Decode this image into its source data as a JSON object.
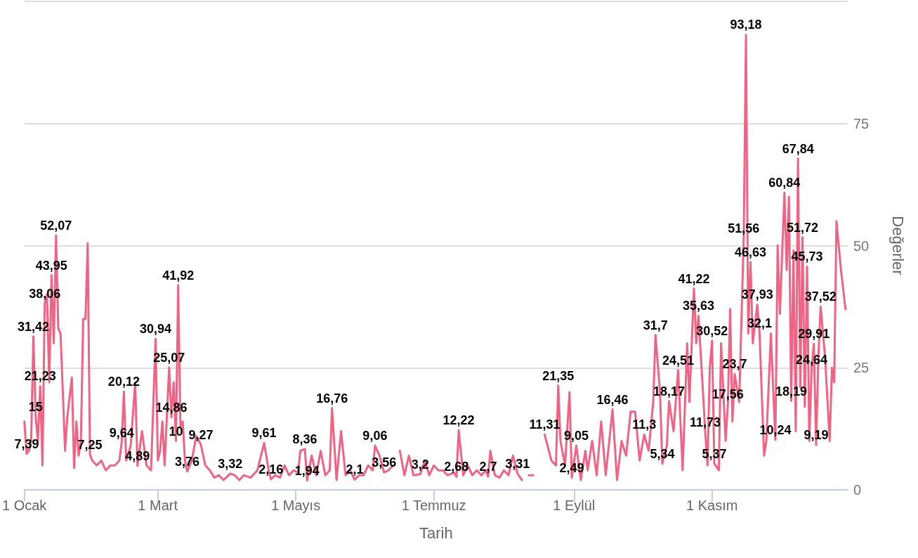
{
  "chart_data": {
    "type": "line",
    "xlabel": "Tarih",
    "ylabel": "Değerler",
    "color": "#f06384",
    "grid": "y",
    "marker": "none",
    "line_style": "solid",
    "xlim": [
      "--01-01",
      "--12-31"
    ],
    "xticks": [
      {
        "value": "--01-01",
        "label": "1 Ocak"
      },
      {
        "value": "--03-01",
        "label": "1 Mart"
      },
      {
        "value": "--05-01",
        "label": "1 Mayıs"
      },
      {
        "value": "--07-01",
        "label": "1 Temmuz"
      },
      {
        "value": "--09-01",
        "label": "1 Eylül"
      },
      {
        "value": "--11-01",
        "label": "1 Kasım"
      }
    ],
    "ylim": [
      0,
      100
    ],
    "yticks": [
      0,
      25,
      50,
      75,
      {
        "value": 100,
        "label": null
      }
    ],
    "x": [
      "--01-01",
      "--01-02",
      "--01-03",
      "--01-04",
      "--01-05",
      "--01-06",
      "--01-07",
      "--01-08",
      "--01-09",
      "--01-10",
      "--01-11",
      "--01-12",
      "--01-13",
      "--01-14",
      "--01-15",
      "--01-16",
      "--01-17",
      "--01-18",
      "--01-19",
      "--01-20",
      "--01-22",
      "--01-23",
      "--01-24",
      "--01-25",
      "--01-26",
      "--01-27",
      "--01-28",
      "--01-29",
      "--01-30",
      "--01-31",
      "--02-02",
      "--02-04",
      "--02-06",
      "--02-08",
      "--02-10",
      "--02-12",
      "--02-13",
      "--02-14",
      "--02-15",
      "--02-17",
      "--02-19",
      "--02-20",
      "--02-22",
      "--02-24",
      "--02-26",
      "--02-28",
      "--03-01",
      "--03-02",
      "--03-03",
      "--03-04",
      "--03-06",
      "--03-07",
      "--03-08",
      "--03-09",
      "--03-10",
      "--03-11",
      "--03-12",
      "--03-13",
      "--03-14",
      "--03-16",
      "--03-18",
      "--03-20",
      "--03-22",
      "--03-24",
      "--03-26",
      "--03-28",
      "--03-30",
      "--04-02",
      "--04-04",
      "--04-06",
      "--04-08",
      "--04-11",
      "--04-14",
      "--04-17",
      "--04-19",
      "--04-20",
      "--04-22",
      "--04-24",
      "--04-26",
      "--04-28",
      "--04-30",
      "--05-02",
      "--05-03",
      "--05-05",
      "--05-06",
      "--05-08",
      "--05-10",
      "--05-12",
      "--05-14",
      "--05-16",
      "--05-17",
      "--05-19",
      "--05-21",
      "--05-23",
      "--05-25",
      "--05-27",
      "--05-29",
      "--05-31",
      "--06-02",
      "--06-04",
      "--06-05",
      "--06-07",
      "--06-09",
      "--06-11",
      "--06-13",
      "--06-14",
      "--06-16",
      "--06-18",
      "--06-20",
      "--06-22",
      "--06-25",
      "--06-27",
      "--06-29",
      "--07-01",
      "--07-03",
      "--07-05",
      "--07-07",
      "--07-10",
      "--07-11",
      "--07-12",
      "--07-14",
      "--07-16",
      "--07-18",
      "--07-20",
      "--07-22",
      "--07-24",
      "--07-25",
      "--07-26",
      "--07-28",
      "--07-30",
      "--08-01",
      "--08-03",
      "--08-05",
      "--08-07",
      "--08-09",
      "--08-11",
      "--08-12",
      "--08-14",
      "--08-16",
      "--08-19",
      "--08-22",
      "--08-24",
      "--08-25",
      "--08-26",
      "--08-28",
      "--08-30",
      "--08-31",
      "--09-02",
      "--09-04",
      "--09-06",
      "--09-07",
      "--09-09",
      "--09-11",
      "--09-13",
      "--09-15",
      "--09-18",
      "--09-20",
      "--09-22",
      "--09-24",
      "--09-26",
      "--09-28",
      "--09-30",
      "--10-02",
      "--10-04",
      "--10-06",
      "--10-07",
      "--10-09",
      "--10-10",
      "--10-12",
      "--10-13",
      "--10-15",
      "--10-17",
      "--10-19",
      "--10-21",
      "--10-22",
      "--10-24",
      "--10-25",
      "--10-26",
      "--10-28",
      "--10-29",
      "--10-30",
      "--10-31",
      "--11-01",
      "--11-02",
      "--11-04",
      "--11-05",
      "--11-07",
      "--11-08",
      "--11-09",
      "--11-10",
      "--11-11",
      "--11-13",
      "--11-15",
      "--11-16",
      "--11-17",
      "--11-18",
      "--11-19",
      "--11-21",
      "--11-22",
      "--11-24",
      "--11-25",
      "--11-27",
      "--11-29",
      "--11-30",
      "--12-01",
      "--12-03",
      "--12-04",
      "--12-05",
      "--12-06",
      "--12-07",
      "--12-08",
      "--12-09",
      "--12-10",
      "--12-11",
      "--12-12",
      "--12-13",
      "--12-14",
      "--12-15",
      "--12-16",
      "--12-17",
      "--12-18",
      "--12-19",
      "--12-21",
      "--12-23",
      "--12-24",
      "--12-25",
      "--12-26",
      "--12-28",
      "--12-30"
    ],
    "values": [
      14,
      7.39,
      8,
      10,
      31.42,
      15,
      10,
      21.23,
      5,
      38.06,
      40,
      22,
      43.95,
      30,
      52.07,
      33,
      32,
      20,
      8,
      15,
      23,
      4.5,
      14,
      7,
      10,
      35,
      35,
      50.5,
      7.25,
      6,
      5,
      6,
      4,
      5,
      5,
      6,
      9.64,
      20.12,
      6,
      9,
      22,
      4.89,
      12,
      5,
      4,
      30.94,
      6,
      8,
      14,
      5,
      25.07,
      14.86,
      22,
      10,
      41.92,
      13,
      14,
      6,
      3.76,
      6,
      11,
      9.27,
      5,
      4,
      2.5,
      3,
      2,
      3.32,
      3,
      2,
      3,
      2.5,
      4,
      9.61,
      4,
      2.16,
      3,
      2.5,
      5,
      3,
      4,
      3.5,
      8,
      8.36,
      1.94,
      7,
      3,
      8,
      3,
      4,
      16.76,
      2,
      12,
      3,
      4,
      2.1,
      3,
      3,
      5,
      4,
      9.06,
      7,
      3.56,
      4,
      5,
      null,
      8,
      3,
      7,
      3,
      3.2,
      6,
      3,
      5,
      4,
      4,
      3,
      3.5,
      2.68,
      12.22,
      3,
      5,
      3,
      4,
      3,
      4,
      2.7,
      8,
      3,
      2.5,
      4,
      3,
      7,
      3.31,
      2,
      null,
      3,
      3,
      null,
      11.31,
      6,
      5,
      21.35,
      10,
      5,
      20,
      2.49,
      9.05,
      2,
      8,
      4,
      10,
      3,
      14,
      3,
      16.46,
      2,
      10,
      7,
      16,
      16,
      6,
      11.3,
      8,
      18,
      31.7,
      20,
      5.34,
      9,
      18.17,
      12,
      24.51,
      4,
      30,
      18,
      41.22,
      30,
      35.63,
      20,
      11.73,
      5,
      25,
      30.52,
      5.37,
      4,
      30,
      10,
      17.56,
      37,
      14,
      23.7,
      18,
      51.56,
      93.18,
      32,
      46.63,
      30,
      37.93,
      32.1,
      7,
      10,
      32,
      10.24,
      50,
      36,
      60.84,
      45,
      60,
      18.19,
      49,
      12,
      67.84,
      21,
      51.72,
      17,
      45.73,
      10,
      24.64,
      29.91,
      9.19,
      27,
      37.52,
      27,
      10,
      25,
      22,
      55,
      45,
      37
    ],
    "value_labels": [
      null,
      "7,39",
      null,
      null,
      "31,42",
      "15",
      null,
      "21,23",
      null,
      "38,06",
      null,
      null,
      "43,95",
      null,
      "52,07",
      null,
      null,
      null,
      null,
      null,
      null,
      null,
      null,
      null,
      null,
      null,
      null,
      null,
      "7,25",
      null,
      null,
      null,
      null,
      null,
      null,
      null,
      "9,64",
      "20,12",
      null,
      null,
      null,
      "4,89",
      null,
      null,
      null,
      "30,94",
      null,
      null,
      null,
      null,
      "25,07",
      "14,86",
      null,
      "10",
      "41,92",
      null,
      null,
      null,
      "3,76",
      null,
      null,
      "9,27",
      null,
      null,
      null,
      null,
      null,
      "3,32",
      null,
      null,
      null,
      null,
      null,
      "9,61",
      null,
      "2,16",
      null,
      null,
      null,
      null,
      null,
      null,
      null,
      "8,36",
      "1,94",
      null,
      null,
      null,
      null,
      null,
      "16,76",
      null,
      null,
      null,
      null,
      "2,1",
      null,
      null,
      null,
      null,
      "9,06",
      null,
      "3,56",
      null,
      null,
      null,
      null,
      null,
      null,
      null,
      "3,2",
      null,
      null,
      null,
      null,
      null,
      null,
      null,
      "2,68",
      "12,22",
      null,
      null,
      null,
      null,
      null,
      null,
      "2,7",
      null,
      null,
      null,
      null,
      null,
      null,
      "3,31",
      null,
      null,
      null,
      null,
      null,
      "11,31",
      null,
      null,
      "21,35",
      null,
      null,
      null,
      "2,49",
      "9,05",
      null,
      null,
      null,
      null,
      null,
      null,
      null,
      "16,46",
      null,
      null,
      null,
      null,
      null,
      null,
      "11,3",
      null,
      null,
      "31,7",
      null,
      "5,34",
      null,
      "18,17",
      null,
      "24,51",
      null,
      null,
      null,
      "41,22",
      null,
      "35,63",
      null,
      "11,73",
      null,
      null,
      "30,52",
      "5,37",
      null,
      null,
      null,
      "17,56",
      null,
      null,
      "23,7",
      null,
      "51,56",
      "93,18",
      null,
      "46,63",
      null,
      "37,93",
      "32,1",
      null,
      null,
      null,
      "10,24",
      null,
      null,
      "60,84",
      null,
      null,
      "18,19",
      null,
      null,
      "67,84",
      null,
      "51,72",
      null,
      "45,73",
      null,
      "24,64",
      "29,91",
      "9,19",
      null,
      "37,52",
      null,
      null,
      null,
      null,
      null,
      null,
      null
    ]
  }
}
